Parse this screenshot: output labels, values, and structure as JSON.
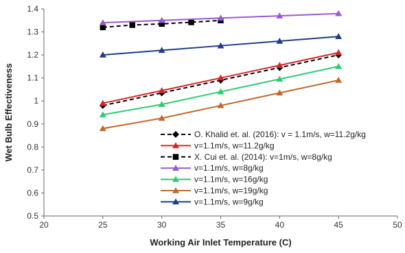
{
  "chart_data": {
    "type": "line",
    "xlabel": "Working Air Inlet Temperature (C)",
    "ylabel": "Wet Bulb Effectiveness",
    "xlim": [
      20,
      50
    ],
    "ylim": [
      0.5,
      1.4
    ],
    "xticks": [
      20,
      25,
      30,
      35,
      40,
      45,
      50
    ],
    "yticks": [
      0.5,
      0.6,
      0.7,
      0.8,
      0.9,
      1.0,
      1.1,
      1.2,
      1.3,
      1.4
    ],
    "xtick_labels": [
      "20",
      "25",
      "30",
      "35",
      "40",
      "45",
      "50"
    ],
    "ytick_labels": [
      "0.5",
      "0.6",
      "0.7",
      "0.8",
      "0.9",
      "1",
      "1.1",
      "1.2",
      "1.3",
      "1.4"
    ],
    "grid": false,
    "legend_position": "lower-right",
    "series": [
      {
        "name": "O. Khalid et. al. (2016): v = 1.1m/s, w=11.2g/kg",
        "color": "#000000",
        "dash": true,
        "marker": "diamond",
        "x": [
          25,
          30,
          35,
          40,
          45
        ],
        "y": [
          0.98,
          1.035,
          1.09,
          1.145,
          1.2
        ]
      },
      {
        "name": "v=1.1m/s, w=11.2g/kg",
        "color": "#d62728",
        "dash": false,
        "marker": "triangle",
        "x": [
          25,
          30,
          35,
          40,
          45
        ],
        "y": [
          0.99,
          1.045,
          1.1,
          1.155,
          1.21
        ]
      },
      {
        "name": "X. Cui et. al. (2014): v=1m/s, w=8g/kg",
        "color": "#000000",
        "dash": true,
        "marker": "square",
        "x": [
          25,
          27.5,
          30,
          32.5,
          35
        ],
        "y": [
          1.32,
          1.33,
          1.335,
          1.342,
          1.35
        ]
      },
      {
        "name": "v=1.1m/s, w=8g/kg",
        "color": "#9b59d0",
        "dash": false,
        "marker": "triangle",
        "x": [
          25,
          30,
          35,
          40,
          45
        ],
        "y": [
          1.34,
          1.35,
          1.36,
          1.37,
          1.38
        ]
      },
      {
        "name": "v=1.1m/s, w=16g/kg",
        "color": "#2ecc71",
        "dash": false,
        "marker": "triangle",
        "x": [
          25,
          30,
          35,
          40,
          45
        ],
        "y": [
          0.94,
          0.985,
          1.04,
          1.095,
          1.15
        ]
      },
      {
        "name": "v=1.1m/s, w=19g/kg",
        "color": "#c0692b",
        "dash": false,
        "marker": "triangle",
        "x": [
          25,
          30,
          35,
          40,
          45
        ],
        "y": [
          0.88,
          0.925,
          0.98,
          1.035,
          1.09
        ]
      },
      {
        "name": "v=1.1m/s, w=9g/kg",
        "color": "#1f3c88",
        "dash": false,
        "marker": "triangle",
        "x": [
          25,
          30,
          35,
          40,
          45
        ],
        "y": [
          1.2,
          1.22,
          1.24,
          1.26,
          1.28
        ]
      }
    ]
  }
}
